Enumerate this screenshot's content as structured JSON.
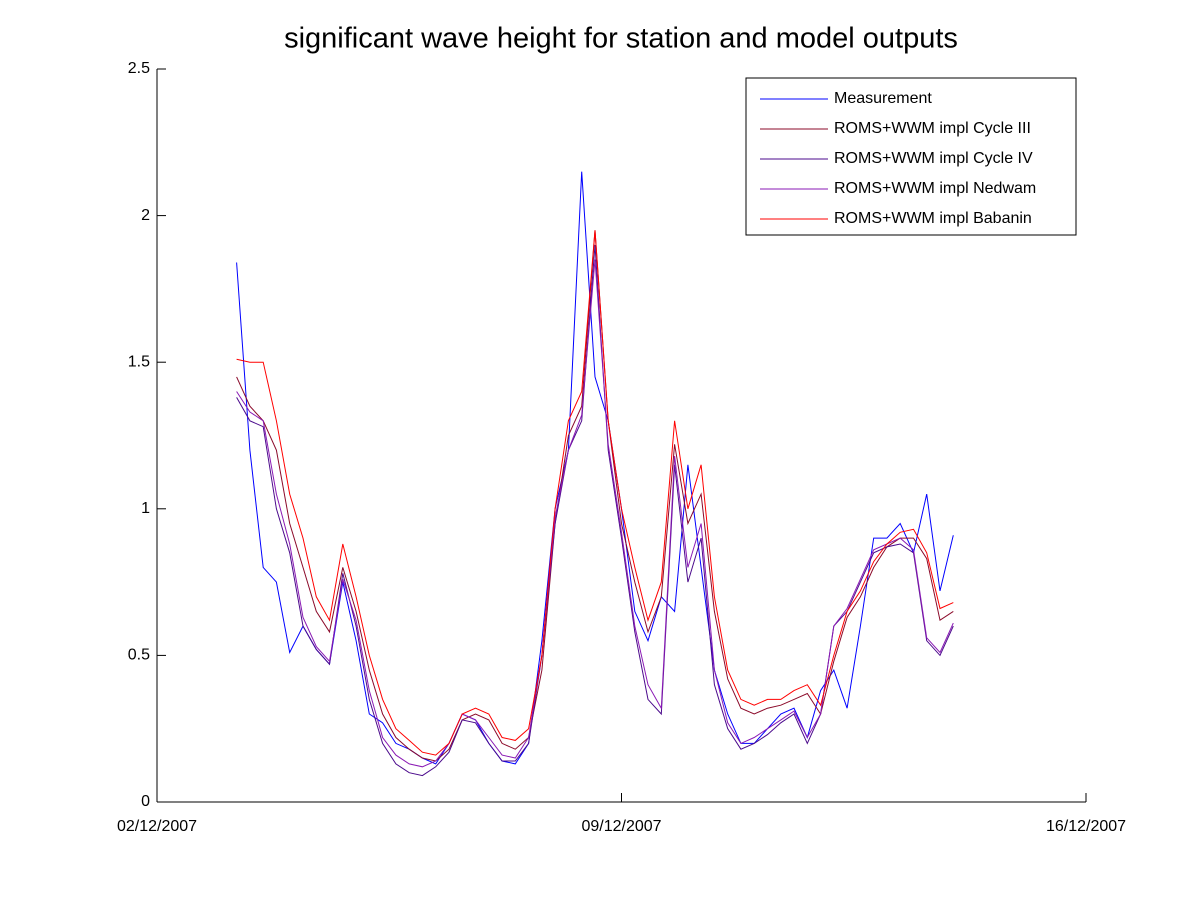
{
  "chart_data": {
    "type": "line",
    "title": "significant wave height for station and model outputs",
    "x": [
      3.2,
      3.4,
      3.6,
      3.8,
      4.0,
      4.2,
      4.4,
      4.6,
      4.8,
      5.0,
      5.2,
      5.4,
      5.6,
      5.8,
      6.0,
      6.2,
      6.4,
      6.6,
      6.8,
      7.0,
      7.2,
      7.4,
      7.6,
      7.8,
      8.0,
      8.2,
      8.4,
      8.6,
      8.8,
      9.0,
      9.2,
      9.4,
      9.6,
      9.8,
      10.0,
      10.2,
      10.4,
      10.6,
      10.8,
      11.0,
      11.2,
      11.4,
      11.6,
      11.8,
      12.0,
      12.2,
      12.4,
      12.6,
      12.8,
      13.0,
      13.2,
      13.4,
      13.6,
      13.8,
      14.0
    ],
    "series": [
      {
        "name": "Measurement",
        "color": "#0000ff",
        "values": [
          1.84,
          1.2,
          0.8,
          0.75,
          0.51,
          0.6,
          0.52,
          0.47,
          0.75,
          0.55,
          0.3,
          0.27,
          0.2,
          0.18,
          0.15,
          0.13,
          0.2,
          0.3,
          0.28,
          0.2,
          0.14,
          0.13,
          0.2,
          0.55,
          1.0,
          1.2,
          2.15,
          1.45,
          1.3,
          1.0,
          0.65,
          0.55,
          0.7,
          0.65,
          1.15,
          0.8,
          0.45,
          0.3,
          0.2,
          0.2,
          0.25,
          0.3,
          0.32,
          0.22,
          0.38,
          0.45,
          0.32,
          0.6,
          0.9,
          0.9,
          0.95,
          0.85,
          1.05,
          0.72,
          0.91
        ]
      },
      {
        "name": "ROMS+WWM impl Cycle III",
        "color": "#8b0a2a",
        "values": [
          1.45,
          1.35,
          1.3,
          1.2,
          0.95,
          0.8,
          0.65,
          0.58,
          0.8,
          0.65,
          0.45,
          0.3,
          0.22,
          0.18,
          0.15,
          0.14,
          0.18,
          0.28,
          0.3,
          0.28,
          0.2,
          0.18,
          0.22,
          0.45,
          0.95,
          1.25,
          1.35,
          1.95,
          1.3,
          0.95,
          0.75,
          0.58,
          0.7,
          1.22,
          0.95,
          1.05,
          0.65,
          0.42,
          0.32,
          0.3,
          0.32,
          0.33,
          0.35,
          0.37,
          0.3,
          0.48,
          0.63,
          0.7,
          0.8,
          0.87,
          0.9,
          0.9,
          0.83,
          0.62,
          0.65
        ]
      },
      {
        "name": "ROMS+WWM impl Cycle IV",
        "color": "#4b0a8c",
        "values": [
          1.38,
          1.3,
          1.28,
          1.0,
          0.85,
          0.6,
          0.52,
          0.47,
          0.78,
          0.6,
          0.35,
          0.2,
          0.13,
          0.1,
          0.09,
          0.12,
          0.17,
          0.28,
          0.27,
          0.2,
          0.14,
          0.14,
          0.2,
          0.5,
          0.95,
          1.2,
          1.3,
          1.9,
          1.2,
          0.9,
          0.58,
          0.35,
          0.3,
          1.15,
          0.75,
          0.9,
          0.4,
          0.25,
          0.18,
          0.2,
          0.23,
          0.27,
          0.3,
          0.2,
          0.3,
          0.6,
          0.65,
          0.75,
          0.85,
          0.87,
          0.88,
          0.85,
          0.55,
          0.5,
          0.6
        ]
      },
      {
        "name": "ROMS+WWM impl Nedwam",
        "color": "#8a1ab4",
        "values": [
          1.4,
          1.33,
          1.3,
          1.05,
          0.88,
          0.63,
          0.53,
          0.48,
          0.76,
          0.62,
          0.38,
          0.22,
          0.16,
          0.13,
          0.12,
          0.14,
          0.2,
          0.3,
          0.28,
          0.22,
          0.16,
          0.15,
          0.22,
          0.5,
          0.97,
          1.2,
          1.32,
          1.85,
          1.22,
          0.92,
          0.6,
          0.4,
          0.32,
          1.18,
          0.8,
          0.95,
          0.45,
          0.27,
          0.2,
          0.22,
          0.25,
          0.28,
          0.31,
          0.22,
          0.3,
          0.6,
          0.66,
          0.76,
          0.86,
          0.88,
          0.9,
          0.86,
          0.56,
          0.51,
          0.61
        ]
      },
      {
        "name": "ROMS+WWM impl Babanin",
        "color": "#ff0000",
        "values": [
          1.51,
          1.5,
          1.5,
          1.3,
          1.05,
          0.9,
          0.7,
          0.62,
          0.88,
          0.7,
          0.5,
          0.35,
          0.25,
          0.21,
          0.17,
          0.16,
          0.2,
          0.3,
          0.32,
          0.3,
          0.22,
          0.21,
          0.25,
          0.5,
          1.0,
          1.3,
          1.4,
          1.95,
          1.3,
          1.0,
          0.8,
          0.62,
          0.75,
          1.3,
          1.0,
          1.15,
          0.7,
          0.45,
          0.35,
          0.33,
          0.35,
          0.35,
          0.38,
          0.4,
          0.33,
          0.5,
          0.65,
          0.72,
          0.82,
          0.88,
          0.92,
          0.93,
          0.85,
          0.66,
          0.68
        ]
      }
    ],
    "xlim": [
      2,
      16
    ],
    "xticks": [
      {
        "value": 2,
        "label": "02/12/2007"
      },
      {
        "value": 9,
        "label": "09/12/2007"
      },
      {
        "value": 16,
        "label": "16/12/2007"
      }
    ],
    "ylim": [
      0,
      2.5
    ],
    "yticks": [
      0,
      0.5,
      1,
      1.5,
      2,
      2.5
    ],
    "grid": false,
    "legend": "top-right"
  }
}
